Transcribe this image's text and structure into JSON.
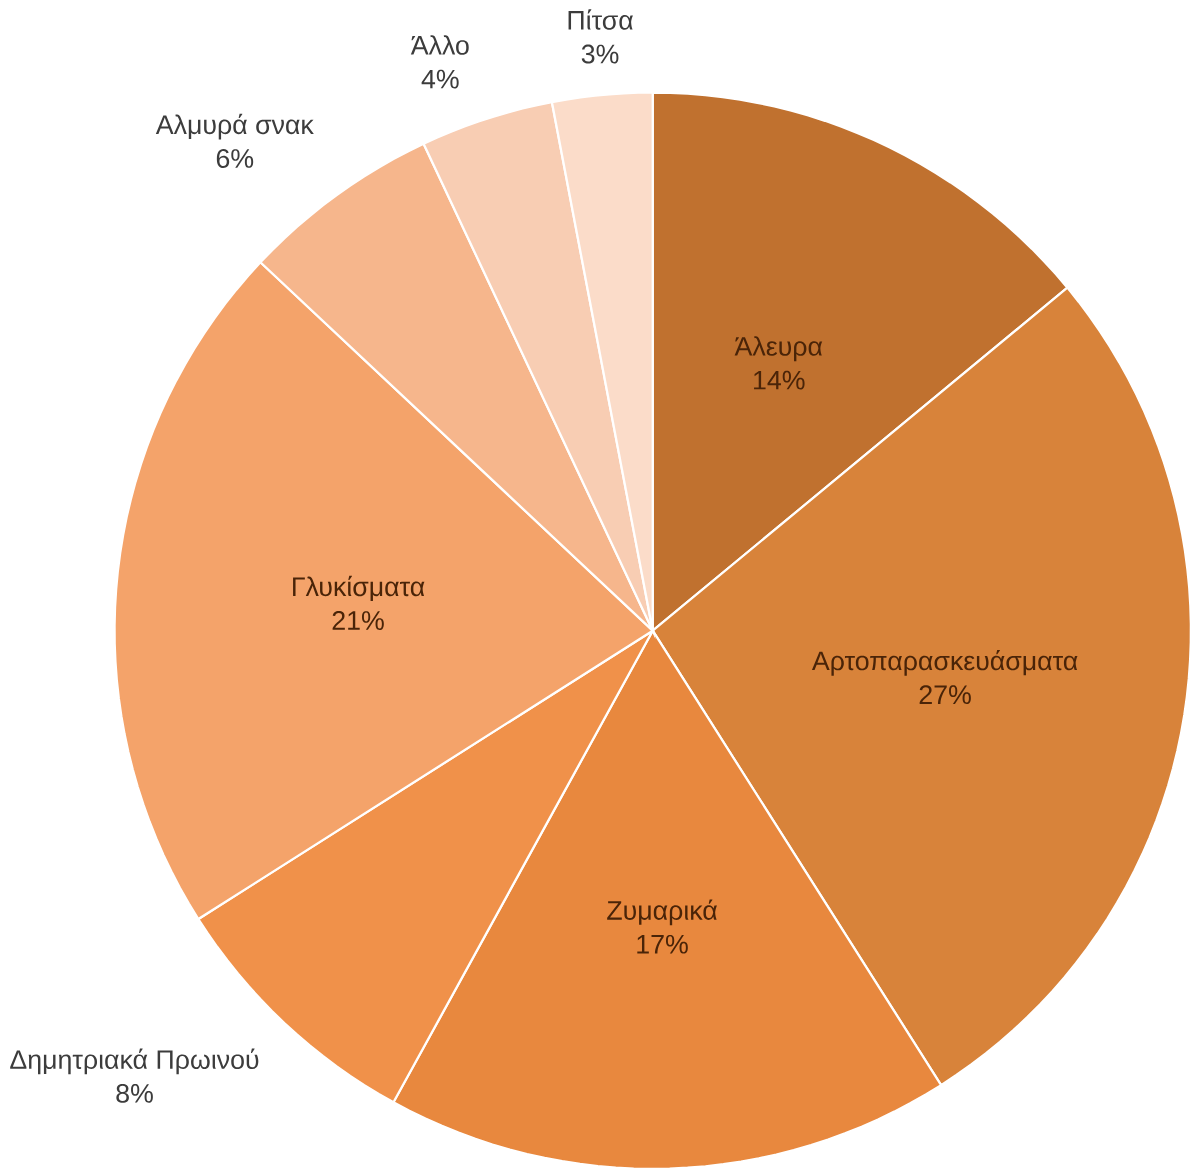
{
  "chart_data": {
    "type": "pie",
    "categories": [
      "Άλευρα",
      "Αρτοπαρασκευάσματα",
      "Ζυμαρικά",
      "Δημητριακά Πρωινού",
      "Γλυκίσματα",
      "Αλμυρά σνακ",
      "Άλλο",
      "Πίτσα"
    ],
    "values": [
      14,
      27,
      17,
      8,
      21,
      6,
      4,
      3
    ],
    "value_labels": [
      "14%",
      "27%",
      "17%",
      "8%",
      "21%",
      "6%",
      "4%",
      "3%"
    ],
    "colors": [
      "#c0712f",
      "#d8833a",
      "#e8883e",
      "#f0914a",
      "#f4a36a",
      "#f6b68c",
      "#f8cdb3",
      "#fbdcc9"
    ]
  }
}
